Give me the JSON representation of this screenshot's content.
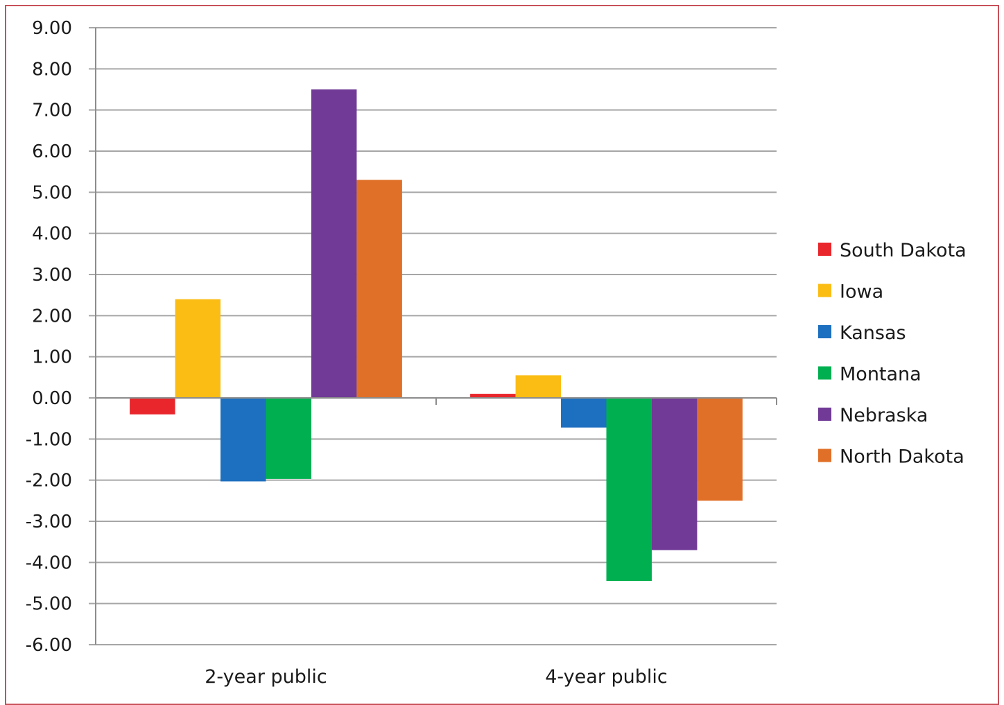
{
  "chart_data": {
    "type": "bar",
    "categories": [
      "2-year public",
      "4-year public"
    ],
    "series": [
      {
        "name": "South Dakota",
        "color": "#e8262b",
        "values": [
          -0.4,
          0.1
        ]
      },
      {
        "name": "Iowa",
        "color": "#fbbd14",
        "values": [
          2.4,
          0.55
        ]
      },
      {
        "name": "Kansas",
        "color": "#1d6fbf",
        "values": [
          -2.03,
          -0.72
        ]
      },
      {
        "name": "Montana",
        "color": "#00b050",
        "values": [
          -1.97,
          -4.45
        ]
      },
      {
        "name": "Nebraska",
        "color": "#703a96",
        "values": [
          7.5,
          -3.7
        ]
      },
      {
        "name": "North Dakota",
        "color": "#e07028",
        "values": [
          5.3,
          -2.5
        ]
      }
    ],
    "y_ticks": [
      "9.00",
      "8.00",
      "7.00",
      "6.00",
      "5.00",
      "4.00",
      "3.00",
      "2.00",
      "1.00",
      "0.00",
      "-1.00",
      "-2.00",
      "-3.00",
      "-4.00",
      "-5.00",
      "-6.00"
    ],
    "ylim": [
      -6,
      9
    ],
    "grid": true,
    "legend_position": "right",
    "title": "",
    "xlabel": "",
    "ylabel": ""
  }
}
